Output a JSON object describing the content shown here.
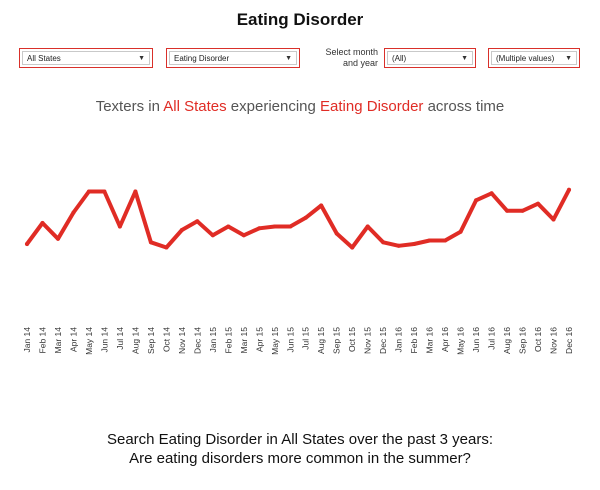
{
  "title": "Eating Disorder",
  "filters": {
    "state": "All States",
    "topic": "Eating Disorder",
    "month_label_1": "Select month",
    "month_label_2": "and year",
    "month": "(All)",
    "multi": "(Multiple values)"
  },
  "subtitle": {
    "part1": "Texters in ",
    "state": "All States",
    "part2": " experiencing ",
    "topic": "Eating Disorder",
    "part3": " across time"
  },
  "question": {
    "line1": "Search Eating Disorder in All States over the past 3 years:",
    "line2": "Are eating disorders more common in the summer?"
  },
  "colors": {
    "accent": "#e02c25"
  },
  "chart_data": {
    "type": "line",
    "categories": [
      "Jan 14",
      "Feb 14",
      "Mar 14",
      "Apr 14",
      "May 14",
      "Jun 14",
      "Jul 14",
      "Aug 14",
      "Sep 14",
      "Oct 14",
      "Nov 14",
      "Dec 14",
      "Jan 15",
      "Feb 15",
      "Mar 15",
      "Apr 15",
      "May 15",
      "Jun 15",
      "Jul 15",
      "Aug 15",
      "Sep 15",
      "Oct 15",
      "Nov 15",
      "Dec 15",
      "Jan 16",
      "Feb 16",
      "Mar 16",
      "Apr 16",
      "May 16",
      "Jun 16",
      "Jul 16",
      "Aug 16",
      "Sep 16",
      "Oct 16",
      "Nov 16",
      "Dec 16"
    ],
    "series": [
      {
        "values": [
          32,
          44,
          35,
          50,
          62,
          62,
          42,
          62,
          33,
          30,
          40,
          45,
          37,
          42,
          37,
          41,
          42,
          42,
          47,
          54,
          38,
          30,
          42,
          33,
          31,
          32,
          34,
          34,
          39,
          57,
          61,
          51,
          51,
          55,
          46,
          63
        ]
      }
    ],
    "ylim": [
      0,
      100
    ],
    "grid": false
  }
}
